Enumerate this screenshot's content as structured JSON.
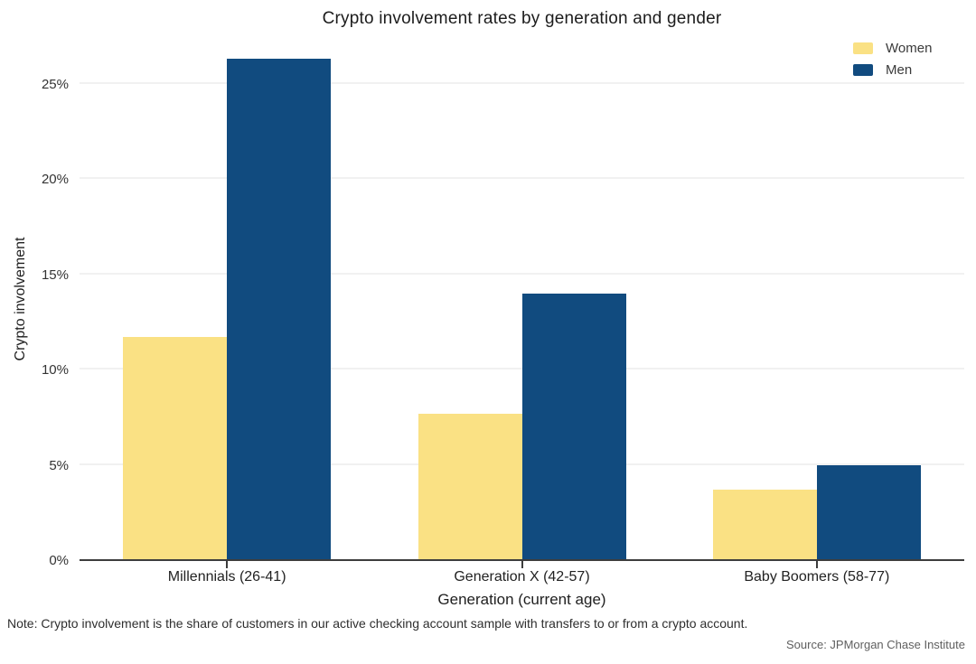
{
  "title": "Crypto involvement rates by generation and gender",
  "footnote": "Note: Crypto involvement is the share of customers in our active checking account sample with transfers to or from a crypto account.",
  "source": "Source: JPMorgan Chase Institute",
  "colors": {
    "women": "#FAE184",
    "men": "#114B7F",
    "axis": "#3d3d3d",
    "gridline": "#f1f1f1",
    "background": "#ffffff"
  },
  "chart_data": {
    "type": "bar",
    "title": "Crypto involvement rates by generation and gender",
    "categories": [
      "Millennials (26-41)",
      "Generation X (42-57)",
      "Baby Boomers (58-77)"
    ],
    "series": [
      {
        "name": "Women",
        "color": "#FAE184",
        "values": [
          11.7,
          7.7,
          3.7
        ]
      },
      {
        "name": "Men",
        "color": "#114B7F",
        "values": [
          26.3,
          14.0,
          5.0
        ]
      }
    ],
    "xlabel": "Generation (current age)",
    "ylabel": "Crypto involvement",
    "y_tick_values": [
      0,
      5,
      10,
      15,
      20,
      25
    ],
    "y_tick_labels": [
      "0%",
      "5%",
      "10%",
      "15%",
      "20%",
      "25%"
    ],
    "y_unit": "%",
    "ylim": [
      0,
      27.5
    ],
    "grid": "horizontal",
    "legend_position": "top-right"
  }
}
